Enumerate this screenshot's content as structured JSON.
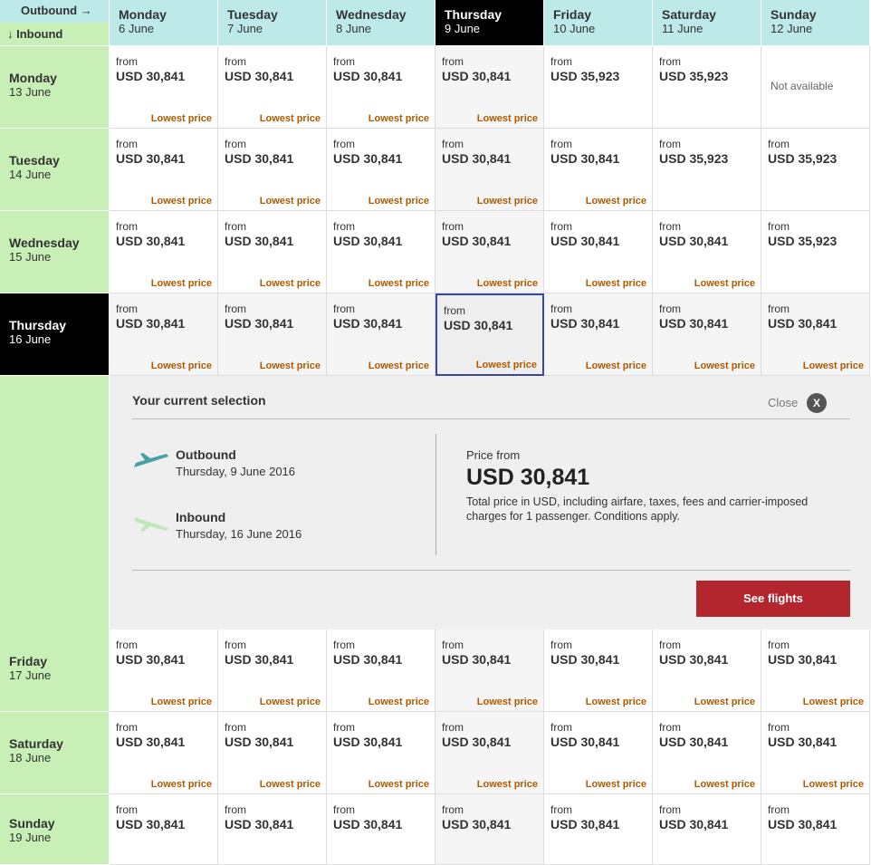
{
  "header": {
    "outbound": "Outbound →",
    "inbound": "↓ Inbound"
  },
  "columns": [
    {
      "day": "Monday",
      "date": "6 June"
    },
    {
      "day": "Tuesday",
      "date": "7 June"
    },
    {
      "day": "Wednesday",
      "date": "8 June"
    },
    {
      "day": "Thursday",
      "date": "9 June"
    },
    {
      "day": "Friday",
      "date": "10 June"
    },
    {
      "day": "Saturday",
      "date": "11 June"
    },
    {
      "day": "Sunday",
      "date": "12 June"
    }
  ],
  "rows": [
    {
      "day": "Monday",
      "date": "13 June",
      "cells": [
        {
          "from": "from",
          "price": "USD 30,841",
          "note": "Lowest price"
        },
        {
          "from": "from",
          "price": "USD 30,841",
          "note": "Lowest price"
        },
        {
          "from": "from",
          "price": "USD 30,841",
          "note": "Lowest price"
        },
        {
          "from": "from",
          "price": "USD 30,841",
          "note": "Lowest price"
        },
        {
          "from": "from",
          "price": "USD 35,923"
        },
        {
          "from": "from",
          "price": "USD 35,923"
        },
        {
          "text": "Not available"
        }
      ]
    },
    {
      "day": "Tuesday",
      "date": "14 June",
      "cells": [
        {
          "from": "from",
          "price": "USD 30,841",
          "note": "Lowest price"
        },
        {
          "from": "from",
          "price": "USD 30,841",
          "note": "Lowest price"
        },
        {
          "from": "from",
          "price": "USD 30,841",
          "note": "Lowest price"
        },
        {
          "from": "from",
          "price": "USD 30,841",
          "note": "Lowest price"
        },
        {
          "from": "from",
          "price": "USD 30,841",
          "note": "Lowest price"
        },
        {
          "from": "from",
          "price": "USD 35,923"
        },
        {
          "from": "from",
          "price": "USD 35,923"
        }
      ]
    },
    {
      "day": "Wednesday",
      "date": "15 June",
      "cells": [
        {
          "from": "from",
          "price": "USD 30,841",
          "note": "Lowest price"
        },
        {
          "from": "from",
          "price": "USD 30,841",
          "note": "Lowest price"
        },
        {
          "from": "from",
          "price": "USD 30,841",
          "note": "Lowest price"
        },
        {
          "from": "from",
          "price": "USD 30,841",
          "note": "Lowest price"
        },
        {
          "from": "from",
          "price": "USD 30,841",
          "note": "Lowest price"
        },
        {
          "from": "from",
          "price": "USD 30,841",
          "note": "Lowest price"
        },
        {
          "from": "from",
          "price": "USD 35,923"
        }
      ]
    },
    {
      "day": "Thursday",
      "date": "16 June",
      "cells": [
        {
          "from": "from",
          "price": "USD 30,841",
          "note": "Lowest price"
        },
        {
          "from": "from",
          "price": "USD 30,841",
          "note": "Lowest price"
        },
        {
          "from": "from",
          "price": "USD 30,841",
          "note": "Lowest price"
        },
        {
          "from": "from",
          "price": "USD 30,841",
          "note": "Lowest price"
        },
        {
          "from": "from",
          "price": "USD 30,841",
          "note": "Lowest price"
        },
        {
          "from": "from",
          "price": "USD 30,841",
          "note": "Lowest price"
        },
        {
          "from": "from",
          "price": "USD 30,841",
          "note": "Lowest price"
        }
      ]
    },
    {
      "day": "Friday",
      "date": "17 June",
      "cells": [
        {
          "from": "from",
          "price": "USD 30,841",
          "note": "Lowest price"
        },
        {
          "from": "from",
          "price": "USD 30,841",
          "note": "Lowest price"
        },
        {
          "from": "from",
          "price": "USD 30,841",
          "note": "Lowest price"
        },
        {
          "from": "from",
          "price": "USD 30,841",
          "note": "Lowest price"
        },
        {
          "from": "from",
          "price": "USD 30,841",
          "note": "Lowest price"
        },
        {
          "from": "from",
          "price": "USD 30,841",
          "note": "Lowest price"
        },
        {
          "from": "from",
          "price": "USD 30,841",
          "note": "Lowest price"
        }
      ]
    },
    {
      "day": "Saturday",
      "date": "18 June",
      "cells": [
        {
          "from": "from",
          "price": "USD 30,841",
          "note": "Lowest price"
        },
        {
          "from": "from",
          "price": "USD 30,841",
          "note": "Lowest price"
        },
        {
          "from": "from",
          "price": "USD 30,841",
          "note": "Lowest price"
        },
        {
          "from": "from",
          "price": "USD 30,841",
          "note": "Lowest price"
        },
        {
          "from": "from",
          "price": "USD 30,841",
          "note": "Lowest price"
        },
        {
          "from": "from",
          "price": "USD 30,841",
          "note": "Lowest price"
        },
        {
          "from": "from",
          "price": "USD 30,841",
          "note": "Lowest price"
        }
      ]
    },
    {
      "day": "Sunday",
      "date": "19 June",
      "cells": [
        {
          "from": "from",
          "price": "USD 30,841"
        },
        {
          "from": "from",
          "price": "USD 30,841"
        },
        {
          "from": "from",
          "price": "USD 30,841"
        },
        {
          "from": "from",
          "price": "USD 30,841"
        },
        {
          "from": "from",
          "price": "USD 30,841"
        },
        {
          "from": "from",
          "price": "USD 30,841"
        },
        {
          "from": "from",
          "price": "USD 30,841"
        }
      ]
    }
  ],
  "selection": {
    "title": "Your current selection",
    "close": "Close",
    "close_icon": "X",
    "outbound_label": "Outbound",
    "outbound_date": "Thursday, 9 June 2016",
    "inbound_label": "Inbound",
    "inbound_date": "Thursday, 16 June 2016",
    "price_label": "Price from",
    "price": "USD 30,841",
    "note": "Total price in USD, including airfare, taxes, fees and carrier-imposed charges for 1 passenger. Conditions apply.",
    "button": "See flights"
  }
}
